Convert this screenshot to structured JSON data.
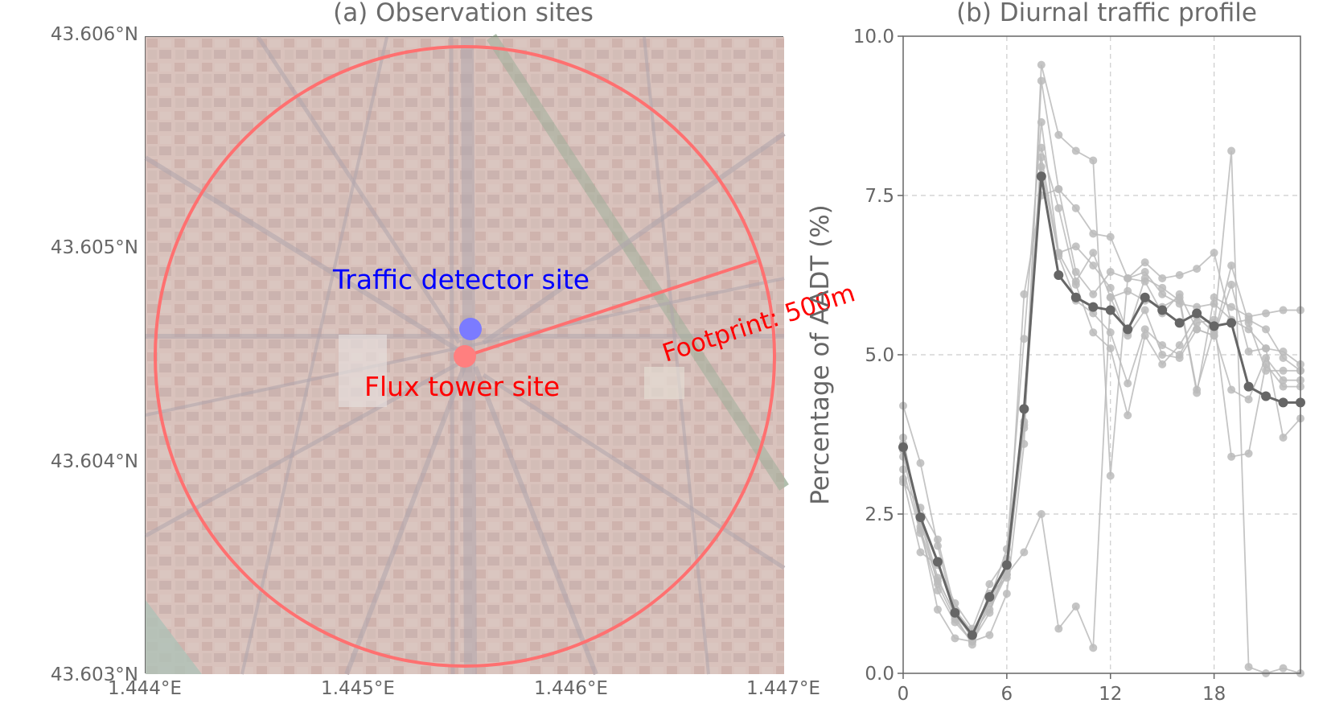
{
  "panel_a": {
    "title": "(a) Observation sites",
    "lat_ticks": [
      "43.606°N",
      "43.605°N",
      "43.604°N",
      "43.603°N"
    ],
    "lon_ticks": [
      "1.444°E",
      "1.445°E",
      "1.446°E",
      "1.447°E"
    ],
    "annotations": {
      "traffic_site": "Traffic detector site",
      "flux_site": "Flux tower site",
      "footprint": "Footprint: 500m"
    },
    "colors": {
      "traffic": "#7b7bff",
      "flux": "#ff7f7f",
      "circle": "#ff7070",
      "traffic_text": "#0000ff",
      "flux_text": "#ff0000"
    },
    "background": "aerial-photo-of-city"
  },
  "chart_data": {
    "type": "line",
    "title": "(b) Diurnal traffic profile",
    "xlabel": "",
    "ylabel": "Percentage of AADT (%)",
    "xlim": [
      0,
      23
    ],
    "ylim": [
      0,
      10
    ],
    "xticks": [
      0,
      6,
      12,
      18
    ],
    "yticks": [
      0.0,
      2.5,
      5.0,
      7.5,
      10.0
    ],
    "ytick_labels": [
      "0.0",
      "2.5",
      "5.0",
      "7.5",
      "10.0"
    ],
    "grid": "dashed",
    "x": [
      0,
      1,
      2,
      3,
      4,
      5,
      6,
      7,
      8,
      9,
      10,
      11,
      12,
      13,
      14,
      15,
      16,
      17,
      18,
      19,
      20,
      21,
      22,
      23
    ],
    "mean": [
      3.55,
      2.45,
      1.75,
      0.95,
      0.6,
      1.2,
      1.7,
      4.15,
      7.8,
      6.25,
      5.9,
      5.75,
      5.7,
      5.4,
      5.9,
      5.7,
      5.5,
      5.65,
      5.45,
      5.5,
      4.5,
      4.35,
      4.25,
      4.25
    ],
    "series": [
      [
        3.7,
        2.3,
        1.0,
        0.55,
        0.5,
        0.6,
        1.25,
        3.6,
        9.55,
        8.45,
        8.2,
        8.05,
        3.1,
        6.2,
        6.45,
        6.2,
        6.25,
        6.35,
        6.6,
        5.5,
        5.55,
        5.4,
        4.95,
        4.75
      ],
      [
        4.2,
        3.3,
        2.0,
        0.9,
        0.6,
        1.0,
        1.55,
        3.95,
        9.3,
        7.6,
        7.3,
        6.9,
        6.85,
        6.2,
        6.3,
        5.95,
        5.8,
        5.75,
        5.8,
        5.55,
        5.4,
        5.1,
        5.05,
        4.85
      ],
      [
        3.0,
        2.6,
        2.1,
        1.0,
        0.65,
        1.15,
        1.95,
        5.25,
        8.65,
        6.6,
        6.7,
        6.4,
        6.05,
        5.35,
        6.2,
        6.05,
        5.85,
        4.4,
        5.9,
        5.75,
        5.6,
        5.65,
        5.7,
        5.7
      ],
      [
        3.2,
        2.2,
        1.3,
        0.8,
        0.5,
        0.95,
        1.7,
        4.15,
        8.25,
        7.3,
        6.15,
        6.6,
        5.9,
        5.3,
        5.7,
        5.0,
        4.95,
        5.4,
        5.3,
        6.4,
        5.5,
        4.75,
        4.75,
        4.75
      ],
      [
        3.05,
        1.9,
        1.7,
        1.1,
        0.7,
        1.4,
        1.8,
        3.9,
        8.1,
        6.6,
        6.1,
        5.35,
        5.1,
        4.05,
        5.3,
        4.85,
        5.15,
        5.6,
        5.35,
        4.45,
        4.3,
        4.95,
        4.6,
        4.6
      ],
      [
        3.6,
        2.45,
        1.5,
        0.9,
        0.45,
        1.15,
        1.6,
        3.85,
        7.95,
        6.55,
        5.85,
        5.65,
        5.35,
        4.55,
        5.4,
        5.15,
        5.0,
        5.5,
        5.55,
        3.4,
        3.45,
        4.85,
        4.5,
        4.5
      ],
      [
        3.5,
        2.4,
        1.4,
        0.85,
        0.5,
        1.1,
        1.55,
        1.9,
        2.5,
        0.7,
        1.05,
        0.4,
        5.9,
        6.0,
        5.85,
        5.75,
        5.9,
        4.45,
        5.4,
        8.2,
        0.1,
        0.0,
        0.08,
        0.0
      ],
      [
        3.4,
        2.25,
        1.45,
        0.95,
        0.55,
        1.25,
        1.5,
        5.95,
        7.5,
        7.6,
        6.3,
        5.95,
        6.3,
        6.2,
        6.15,
        5.65,
        5.95,
        5.4,
        5.3,
        6.1,
        5.05,
        5.1,
        3.7,
        4.0
      ]
    ],
    "colors": {
      "mean": "#666666",
      "series": "#bbbbbb",
      "grid": "#cccccc"
    }
  }
}
